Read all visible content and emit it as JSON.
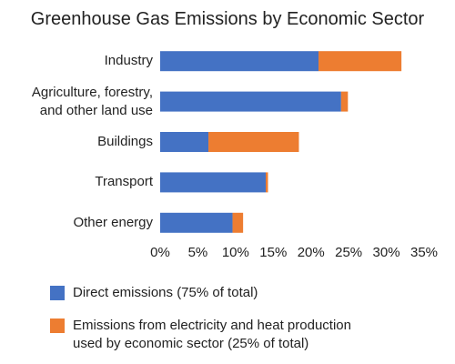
{
  "chart_data": {
    "type": "stacked-barh",
    "title": "Greenhouse Gas Emissions by Economic Sector",
    "categories": [
      "Industry",
      "Agriculture, forestry,\nand other land use",
      "Buildings",
      "Transport",
      "Other energy"
    ],
    "series": [
      {
        "name": "Direct emissions (75% of total)",
        "color": "#4472c4",
        "values": [
          21,
          24,
          6.4,
          14,
          9.6
        ]
      },
      {
        "name": "Emissions from electricity and heat production\nused by economic sector (25% of total)",
        "color": "#ed7d31",
        "values": [
          11,
          0.9,
          12,
          0.3,
          1.4
        ]
      }
    ],
    "xlim": [
      0,
      35
    ],
    "xticks": [
      {
        "value": 0,
        "label": "0%"
      },
      {
        "value": 5,
        "label": "5%"
      },
      {
        "value": 10,
        "label": "10%"
      },
      {
        "value": 15,
        "label": "15%"
      },
      {
        "value": 20,
        "label": "20%"
      },
      {
        "value": 25,
        "label": "25%"
      },
      {
        "value": 30,
        "label": "30%"
      },
      {
        "value": 35,
        "label": "35%"
      }
    ],
    "grid": false,
    "legend": "bottom"
  }
}
